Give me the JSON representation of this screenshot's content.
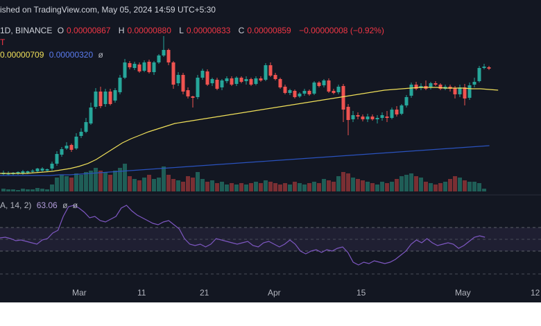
{
  "header": {
    "published": "ished on TradingView.com, May 05, 2024 14:59 UTC+5:30",
    "symbol": "1D, BINANCE",
    "o_label": "O",
    "o_value": "0.00000867",
    "h_label": "H",
    "h_value": "0.00000880",
    "l_label": "L",
    "l_value": "0.00000833",
    "c_label": "C",
    "c_value": "0.00000859",
    "change": "−0.00000008 (−0.92%)",
    "suffix": "T"
  },
  "ma": {
    "ma1": "0.00000709",
    "ma2": "0.00000320",
    "ma_symbol": "ø"
  },
  "rsi": {
    "label": "A, 14, 2)",
    "value": "63.06",
    "sym1": "ø",
    "sym2": "ø"
  },
  "axis": {
    "labels": [
      "Mar",
      "11",
      "21",
      "Apr",
      "15",
      "May",
      "12"
    ]
  },
  "colors": {
    "up": "#26a69a",
    "down": "#ef5350",
    "ma_fast": "#f0e05a",
    "ma_slow": "#2a52be",
    "rsi": "#7e57c2",
    "bg": "#131722"
  },
  "chart_data": {
    "type": "candlestick",
    "series_fast_ma": [
      250,
      250,
      250,
      250,
      249,
      248,
      247,
      245,
      243,
      240,
      236,
      230,
      222,
      214,
      206,
      200,
      195,
      190,
      186,
      182,
      178,
      176,
      174,
      172,
      170,
      168,
      166,
      164,
      162,
      160,
      158,
      156,
      154,
      152,
      150,
      148,
      146,
      144,
      142,
      140,
      138,
      136,
      134,
      132,
      130,
      129,
      128,
      127,
      126,
      126,
      126,
      127,
      127,
      127,
      128,
      128,
      129,
      130
    ],
    "series_slow_ma": [
      253,
      253,
      253,
      253,
      253,
      253,
      252,
      252,
      251,
      250,
      249,
      248,
      247,
      246,
      245,
      244,
      243,
      242,
      241,
      240,
      239,
      238,
      237,
      236,
      235,
      234,
      233,
      232,
      231,
      230,
      229,
      228,
      227,
      226,
      225,
      224,
      223,
      222,
      221,
      220,
      219,
      218,
      217,
      216,
      215,
      214,
      213,
      212,
      211,
      210
    ]
  }
}
